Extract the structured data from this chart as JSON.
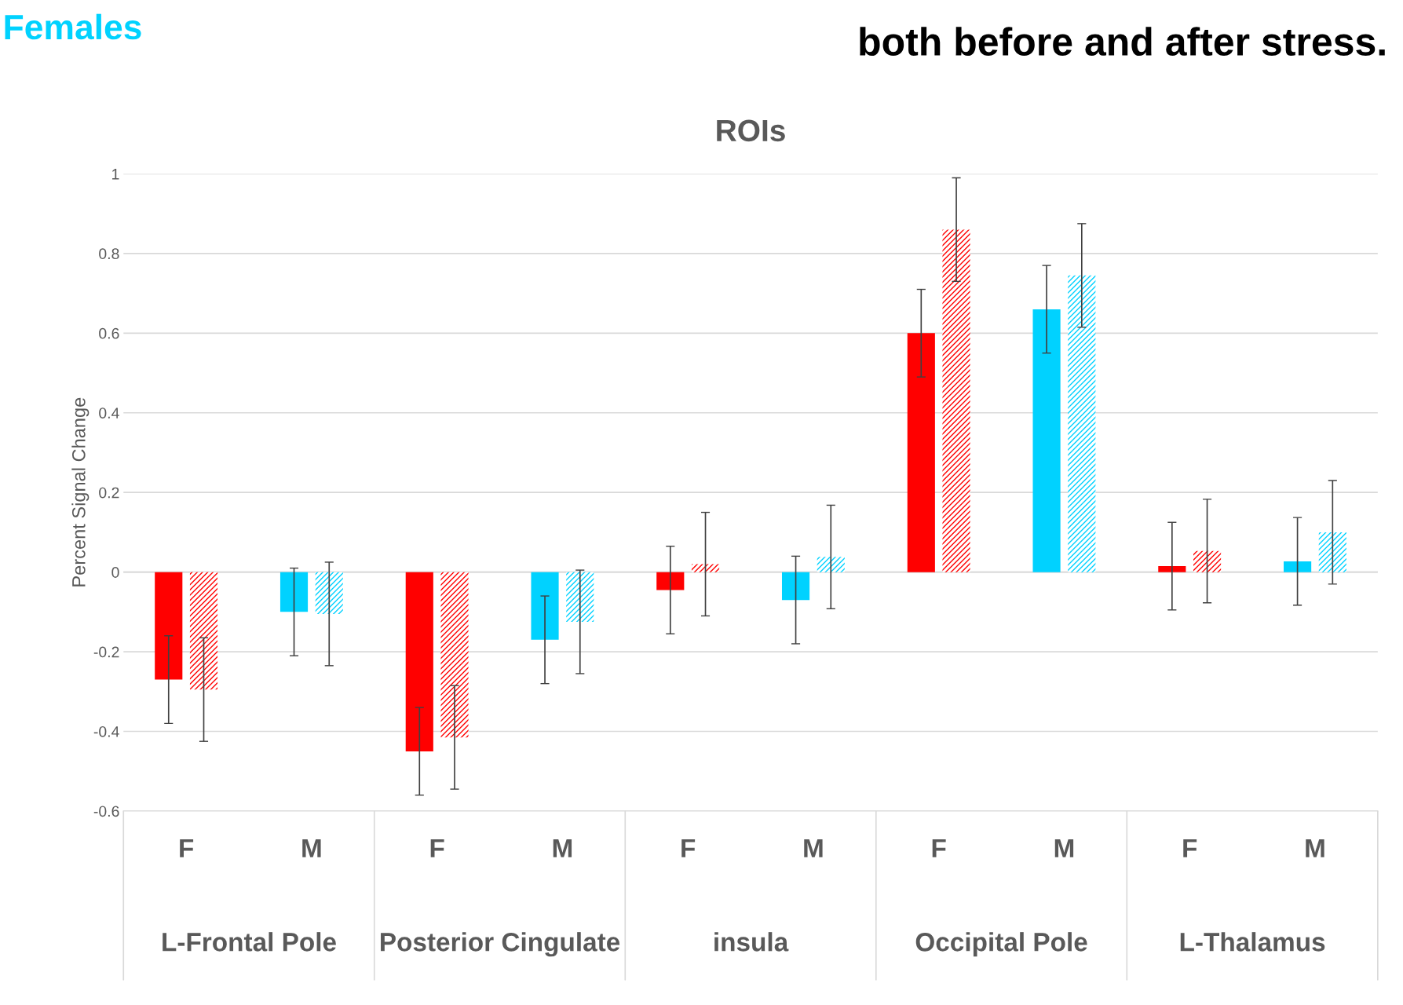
{
  "chart_data": {
    "type": "bar",
    "title": "ROIs",
    "subtitle": "Females",
    "ylabel": "Percent Signal Change",
    "categories": [
      "F",
      "M",
      "F",
      "M",
      "F",
      "M",
      "F",
      "M",
      "F",
      "M"
    ],
    "annotations": [
      "both before and after stress.",
      "L-Frontal Pole",
      "Posterior Cingulate",
      "insula",
      "Occipital Pole",
      "L-Thalamus"
    ],
    "series": [
      {
        "colors": [
          "#ff0000",
          "#00d2ff",
          "#ff0000",
          "#00d2ff",
          "#ff0000",
          "#00d2ff",
          "#ff0000",
          "#00d2ff",
          "#ff0000",
          "#00d2ff"
        ],
        "values": [
          -0.27,
          -0.1,
          -0.45,
          -0.17,
          -0.045,
          -0.07,
          0.6,
          0.66,
          0.015,
          0.027
        ],
        "errors": [
          0.11,
          0.11,
          0.11,
          0.11,
          0.11,
          0.11,
          0.11,
          0.11,
          0.11,
          0.11
        ]
      },
      {
        "colors": [
          "#ff0000",
          "#00d2ff",
          "#ff0000",
          "#00d2ff",
          "#ff0000",
          "#00d2ff",
          "#ff0000",
          "#00d2ff",
          "#ff0000",
          "#00d2ff"
        ],
        "values": [
          -0.295,
          -0.105,
          -0.415,
          -0.125,
          0.02,
          0.038,
          0.86,
          0.745,
          0.053,
          0.1
        ],
        "errors": [
          0.13,
          0.13,
          0.13,
          0.13,
          0.13,
          0.13,
          0.13,
          0.13,
          0.13,
          0.13
        ]
      }
    ],
    "ylim": [
      -0.6,
      1
    ],
    "yticks": [
      -0.6,
      -0.4,
      -0.2,
      0,
      0.2,
      0.4,
      0.6,
      0.8,
      1
    ],
    "grid": "y",
    "legend": false
  }
}
